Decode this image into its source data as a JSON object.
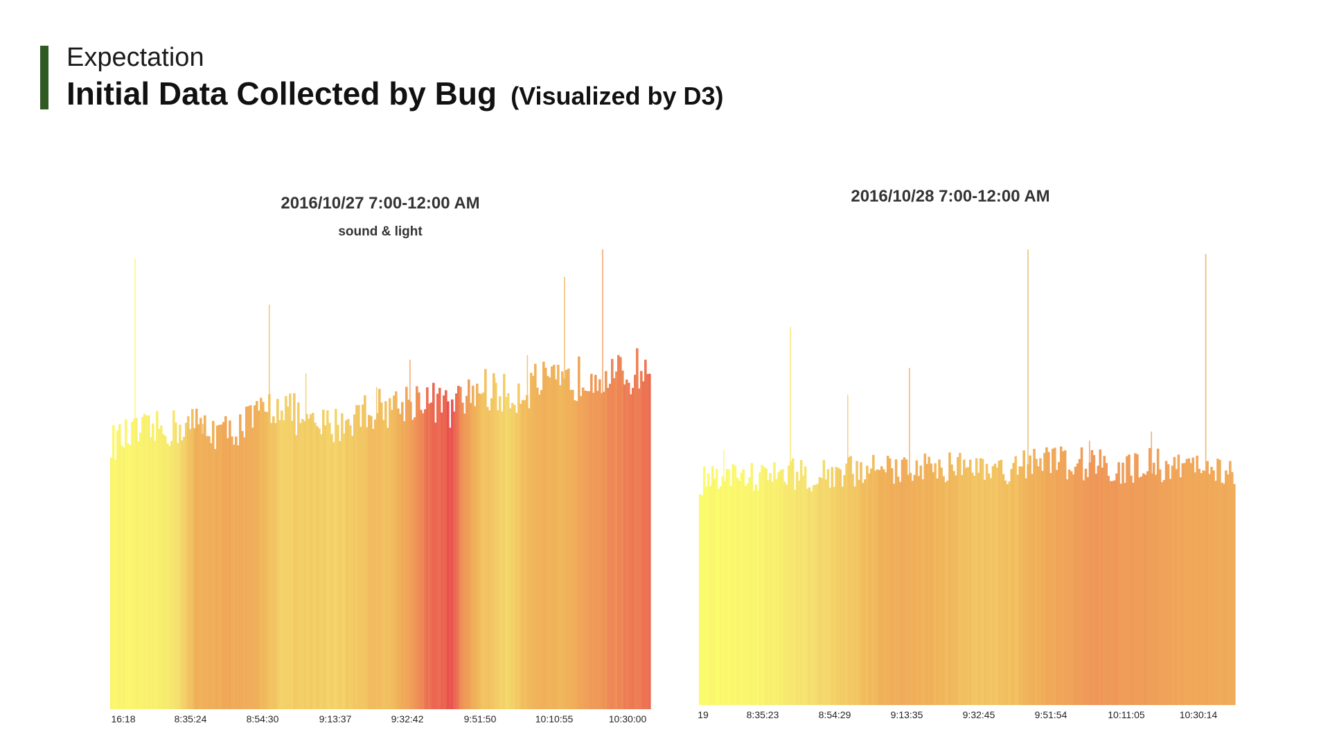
{
  "header": {
    "kicker": "Expectation",
    "title": "Initial Data Collected by Bug",
    "title_note": "(Visualized by D3)",
    "accent_color": "#2f5a22"
  },
  "chart_data": [
    {
      "type": "bar",
      "title": "2016/10/27 7:00-12:00 AM",
      "subtitle": "sound & light",
      "xlabel": "",
      "ylabel": "",
      "x_tick_labels": [
        "16:18",
        "8:35:24",
        "8:54:30",
        "9:13:37",
        "9:32:42",
        "9:51:50",
        "10:10:55",
        "10:30:00"
      ],
      "y_axis_visible": false,
      "grid": false,
      "color_scale": [
        "#fbfb6e",
        "#f5e070",
        "#f0b25a",
        "#ef9458",
        "#e8484e"
      ],
      "bar_height_fraction_of_max": [
        0.58,
        0.6,
        0.61,
        0.62,
        0.6,
        0.63,
        0.67,
        0.61,
        0.62,
        0.65,
        0.66,
        0.68,
        0.65,
        0.7,
        0.68,
        0.71,
        0.7,
        0.74,
        0.72,
        0.75
      ],
      "bar_color_fraction": [
        0.05,
        0.08,
        0.14,
        0.5,
        0.58,
        0.54,
        0.34,
        0.36,
        0.32,
        0.42,
        0.46,
        0.82,
        0.96,
        0.44,
        0.3,
        0.52,
        0.48,
        0.7,
        0.8,
        0.86
      ],
      "spike_fraction_of_max": [
        0.98,
        0.55,
        0.62,
        0.58,
        0.88,
        0.73,
        0.64,
        0.7,
        0.76,
        0.62,
        0.72,
        0.77,
        0.94,
        1.0,
        0.66
      ]
    },
    {
      "type": "bar",
      "title": "2016/10/28 7:00-12:00 AM",
      "subtitle": "",
      "xlabel": "",
      "ylabel": "",
      "x_tick_labels": [
        "19",
        "8:35:23",
        "8:54:29",
        "9:13:35",
        "9:32:45",
        "9:51:54",
        "10:11:05",
        "10:30:14"
      ],
      "y_axis_visible": false,
      "grid": false,
      "color_scale": [
        "#fbfb6e",
        "#f5e070",
        "#f0b25a",
        "#ef9458",
        "#e8484e"
      ],
      "bar_height_fraction_of_max": [
        0.49,
        0.5,
        0.5,
        0.51,
        0.5,
        0.51,
        0.52,
        0.51,
        0.53,
        0.52,
        0.53,
        0.52,
        0.54,
        0.53,
        0.53,
        0.52,
        0.53,
        0.52,
        0.52,
        0.51
      ],
      "bar_color_fraction": [
        0.02,
        0.03,
        0.05,
        0.14,
        0.28,
        0.34,
        0.45,
        0.55,
        0.5,
        0.46,
        0.4,
        0.42,
        0.52,
        0.62,
        0.72,
        0.7,
        0.66,
        0.6,
        0.58,
        0.55
      ],
      "spike_fraction_of_max": [
        0.56,
        0.83,
        0.68,
        0.74,
        0.54,
        1.0,
        0.58,
        0.6,
        0.99
      ]
    }
  ]
}
